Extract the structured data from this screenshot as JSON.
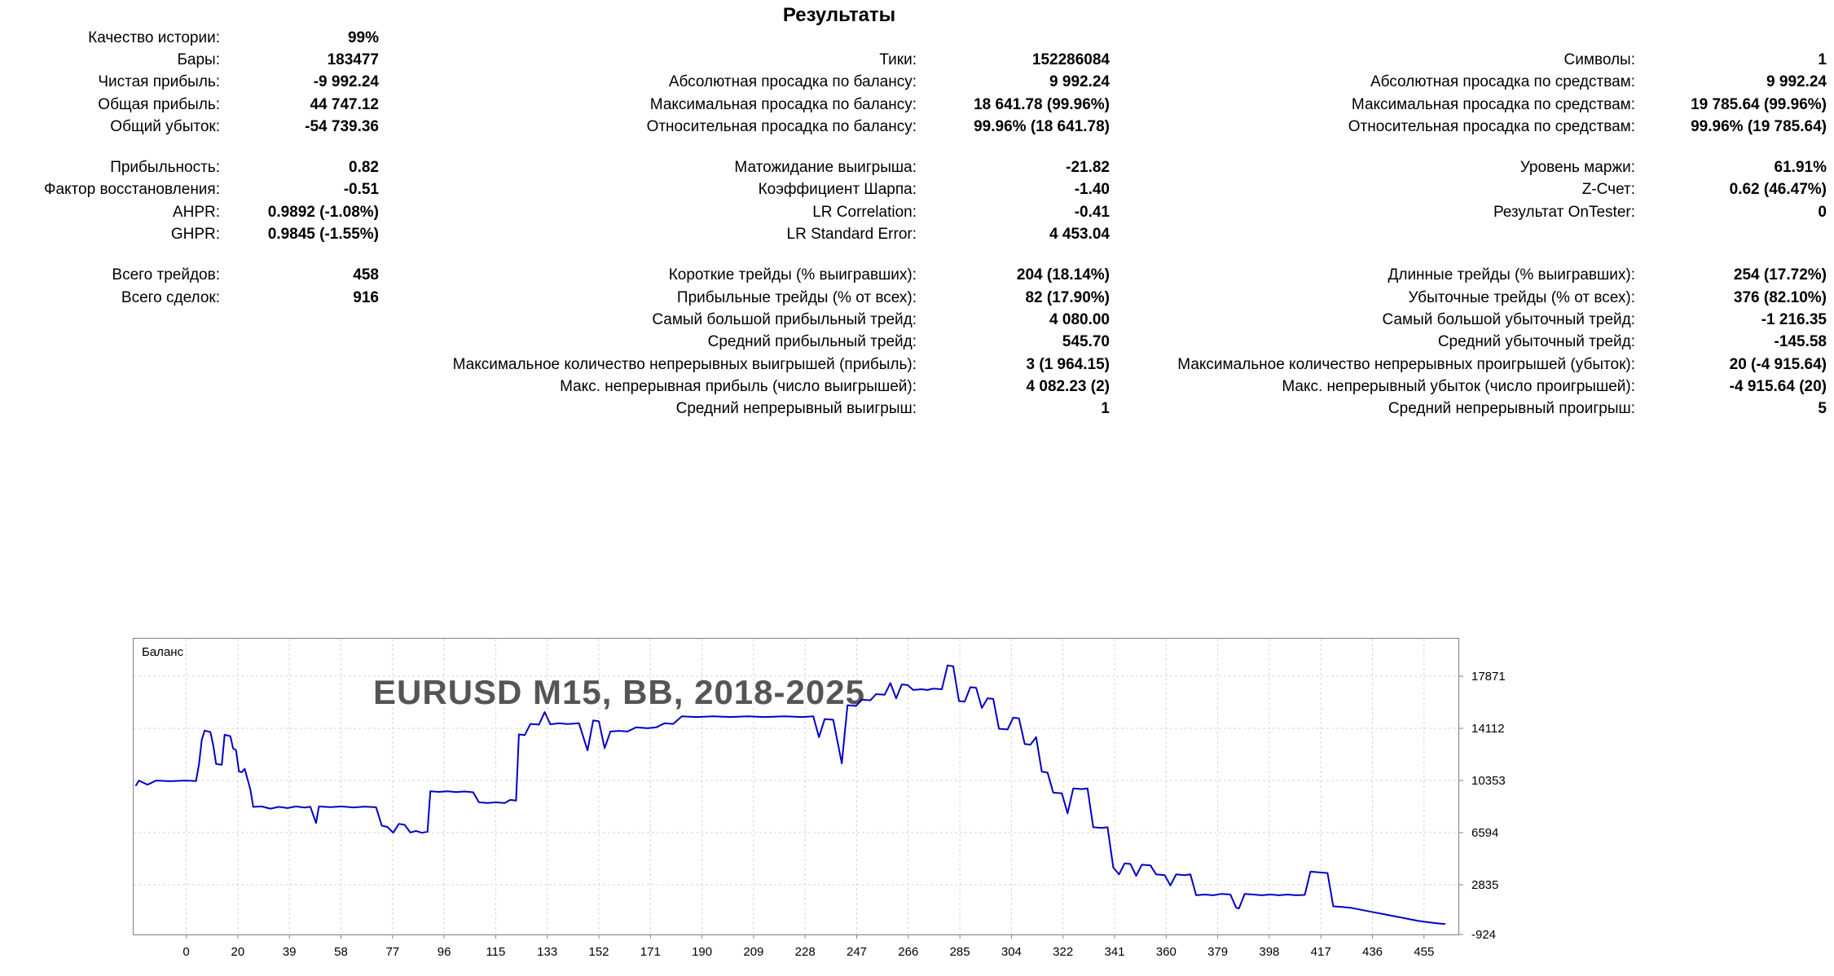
{
  "title": "Результаты",
  "stats": {
    "sections": [
      {
        "rows": [
          [
            {
              "label": "Качество истории:",
              "value": "99%"
            },
            {
              "label": "",
              "value": ""
            },
            {
              "label": "",
              "value": ""
            }
          ],
          [
            {
              "label": "Бары:",
              "value": "183477"
            },
            {
              "label": "Тики:",
              "value": "152286084"
            },
            {
              "label": "Символы:",
              "value": "1"
            }
          ],
          [
            {
              "label": "Чистая прибыль:",
              "value": "-9 992.24"
            },
            {
              "label": "Абсолютная просадка по балансу:",
              "value": "9 992.24"
            },
            {
              "label": "Абсолютная просадка по средствам:",
              "value": "9 992.24"
            }
          ],
          [
            {
              "label": "Общая прибыль:",
              "value": "44 747.12"
            },
            {
              "label": "Максимальная просадка по балансу:",
              "value": "18 641.78 (99.96%)"
            },
            {
              "label": "Максимальная просадка по средствам:",
              "value": "19 785.64 (99.96%)"
            }
          ],
          [
            {
              "label": "Общий убыток:",
              "value": "-54 739.36"
            },
            {
              "label": "Относительная просадка по балансу:",
              "value": "99.96% (18 641.78)"
            },
            {
              "label": "Относительная просадка по средствам:",
              "value": "99.96% (19 785.64)"
            }
          ]
        ]
      },
      {
        "rows": [
          [
            {
              "label": "Прибыльность:",
              "value": "0.82"
            },
            {
              "label": "Матожидание выигрыша:",
              "value": "-21.82"
            },
            {
              "label": "Уровень маржи:",
              "value": "61.91%"
            }
          ],
          [
            {
              "label": "Фактор восстановления:",
              "value": "-0.51"
            },
            {
              "label": "Коэффициент Шарпа:",
              "value": "-1.40"
            },
            {
              "label": "Z-Счет:",
              "value": "0.62 (46.47%)"
            }
          ],
          [
            {
              "label": "AHPR:",
              "value": "0.9892 (-1.08%)"
            },
            {
              "label": "LR Correlation:",
              "value": "-0.41"
            },
            {
              "label": "Результат OnTester:",
              "value": "0"
            }
          ],
          [
            {
              "label": "GHPR:",
              "value": "0.9845 (-1.55%)"
            },
            {
              "label": "LR Standard Error:",
              "value": "4 453.04"
            },
            {
              "label": "",
              "value": ""
            }
          ]
        ]
      },
      {
        "rows": [
          [
            {
              "label": "Всего трейдов:",
              "value": "458"
            },
            {
              "label": "Короткие трейды (% выигравших):",
              "value": "204 (18.14%)"
            },
            {
              "label": "Длинные трейды (% выигравших):",
              "value": "254 (17.72%)"
            }
          ],
          [
            {
              "label": "Всего сделок:",
              "value": "916"
            },
            {
              "label": "Прибыльные трейды (% от всех):",
              "value": "82 (17.90%)"
            },
            {
              "label": "Убыточные трейды (% от всех):",
              "value": "376 (82.10%)"
            }
          ],
          [
            {
              "label": "",
              "value": ""
            },
            {
              "label": "Самый большой прибыльный трейд:",
              "value": "4 080.00"
            },
            {
              "label": "Самый большой убыточный трейд:",
              "value": "-1 216.35"
            }
          ],
          [
            {
              "label": "",
              "value": ""
            },
            {
              "label": "Средний прибыльный трейд:",
              "value": "545.70"
            },
            {
              "label": "Средний убыточный трейд:",
              "value": "-145.58"
            }
          ],
          [
            {
              "label": "",
              "value": ""
            },
            {
              "label": "Максимальное количество непрерывных выигрышей (прибыль):",
              "value": "3 (1 964.15)"
            },
            {
              "label": "Максимальное количество непрерывных проигрышей (убыток):",
              "value": "20 (-4 915.64)"
            }
          ],
          [
            {
              "label": "",
              "value": ""
            },
            {
              "label": "Макс. непрерывная прибыль (число выигрышей):",
              "value": "4 082.23 (2)"
            },
            {
              "label": "Макс. непрерывный убыток (число проигрышей):",
              "value": "-4 915.64 (20)"
            }
          ],
          [
            {
              "label": "",
              "value": ""
            },
            {
              "label": "Средний непрерывный выигрыш:",
              "value": "1"
            },
            {
              "label": "Средний непрерывный проигрыш:",
              "value": "5"
            }
          ]
        ]
      }
    ]
  },
  "chart_data": {
    "type": "line",
    "series_name": "Баланс",
    "watermark": "EURUSD M15, BB, 2018-2025",
    "line_color": "#0000C8",
    "grid_color": "#d6d6d6",
    "border_color": "#808080",
    "watermark_color": "#555555",
    "legend_position": "top-left",
    "grid": true,
    "x_ticks": [
      0,
      20,
      39,
      58,
      77,
      96,
      115,
      133,
      152,
      171,
      190,
      209,
      228,
      247,
      266,
      285,
      304,
      322,
      341,
      360,
      379,
      398,
      417,
      436,
      455
    ],
    "y_ticks": [
      17871,
      14112,
      10353,
      6594,
      2835,
      -924
    ],
    "points": [
      [
        0,
        10000
      ],
      [
        1,
        10350
      ],
      [
        4,
        10050
      ],
      [
        7,
        10350
      ],
      [
        12,
        10300
      ],
      [
        17,
        10350
      ],
      [
        21,
        10320
      ],
      [
        22,
        11500
      ],
      [
        23,
        13300
      ],
      [
        24,
        13950
      ],
      [
        26,
        13850
      ],
      [
        27,
        12900
      ],
      [
        28,
        11550
      ],
      [
        30,
        11480
      ],
      [
        31,
        13650
      ],
      [
        33,
        13550
      ],
      [
        34,
        12650
      ],
      [
        35,
        12550
      ],
      [
        36,
        11000
      ],
      [
        37,
        10950
      ],
      [
        38,
        11200
      ],
      [
        40,
        9700
      ],
      [
        41,
        8450
      ],
      [
        44,
        8480
      ],
      [
        47,
        8320
      ],
      [
        50,
        8450
      ],
      [
        53,
        8360
      ],
      [
        56,
        8480
      ],
      [
        59,
        8400
      ],
      [
        61,
        8460
      ],
      [
        63,
        7280
      ],
      [
        64,
        8480
      ],
      [
        68,
        8430
      ],
      [
        72,
        8480
      ],
      [
        76,
        8410
      ],
      [
        80,
        8470
      ],
      [
        84,
        8420
      ],
      [
        86,
        7100
      ],
      [
        88,
        7000
      ],
      [
        90,
        6580
      ],
      [
        92,
        7230
      ],
      [
        94,
        7150
      ],
      [
        96,
        6600
      ],
      [
        98,
        6720
      ],
      [
        100,
        6580
      ],
      [
        102,
        6660
      ],
      [
        103,
        9580
      ],
      [
        106,
        9530
      ],
      [
        109,
        9580
      ],
      [
        112,
        9520
      ],
      [
        115,
        9560
      ],
      [
        118,
        9500
      ],
      [
        120,
        8780
      ],
      [
        123,
        8730
      ],
      [
        126,
        8780
      ],
      [
        129,
        8720
      ],
      [
        131,
        8960
      ],
      [
        133,
        8900
      ],
      [
        134,
        13680
      ],
      [
        136,
        13620
      ],
      [
        138,
        14430
      ],
      [
        141,
        14380
      ],
      [
        143,
        15280
      ],
      [
        145,
        14400
      ],
      [
        148,
        14480
      ],
      [
        151,
        14420
      ],
      [
        155,
        14480
      ],
      [
        158,
        12520
      ],
      [
        160,
        14680
      ],
      [
        162,
        14620
      ],
      [
        164,
        12680
      ],
      [
        166,
        13880
      ],
      [
        169,
        13930
      ],
      [
        172,
        13880
      ],
      [
        175,
        14180
      ],
      [
        179,
        14120
      ],
      [
        182,
        14180
      ],
      [
        185,
        14480
      ],
      [
        188,
        14430
      ],
      [
        191,
        14980
      ],
      [
        196,
        14930
      ],
      [
        202,
        14980
      ],
      [
        208,
        14930
      ],
      [
        214,
        14980
      ],
      [
        220,
        14930
      ],
      [
        227,
        14980
      ],
      [
        233,
        14930
      ],
      [
        237,
        14980
      ],
      [
        239,
        13480
      ],
      [
        241,
        14780
      ],
      [
        244,
        14730
      ],
      [
        247,
        11580
      ],
      [
        249,
        15780
      ],
      [
        252,
        15730
      ],
      [
        254,
        16180
      ],
      [
        257,
        16130
      ],
      [
        259,
        16580
      ],
      [
        262,
        16530
      ],
      [
        264,
        17380
      ],
      [
        266,
        16280
      ],
      [
        268,
        17280
      ],
      [
        270,
        17230
      ],
      [
        272,
        16880
      ],
      [
        275,
        16930
      ],
      [
        277,
        16880
      ],
      [
        279,
        16980
      ],
      [
        282,
        16930
      ],
      [
        284,
        18648
      ],
      [
        286,
        18580
      ],
      [
        288,
        16080
      ],
      [
        290,
        16030
      ],
      [
        292,
        17080
      ],
      [
        294,
        17030
      ],
      [
        296,
        15580
      ],
      [
        298,
        16280
      ],
      [
        300,
        16230
      ],
      [
        302,
        14080
      ],
      [
        305,
        14030
      ],
      [
        307,
        14880
      ],
      [
        309,
        14830
      ],
      [
        311,
        12980
      ],
      [
        313,
        12930
      ],
      [
        315,
        13480
      ],
      [
        317,
        10980
      ],
      [
        319,
        10930
      ],
      [
        321,
        9480
      ],
      [
        324,
        9430
      ],
      [
        326,
        7980
      ],
      [
        328,
        9780
      ],
      [
        331,
        9730
      ],
      [
        333,
        9780
      ],
      [
        335,
        6980
      ],
      [
        338,
        6930
      ],
      [
        340,
        6980
      ],
      [
        342,
        4080
      ],
      [
        344,
        3580
      ],
      [
        346,
        4380
      ],
      [
        348,
        4330
      ],
      [
        350,
        3480
      ],
      [
        352,
        4280
      ],
      [
        355,
        4230
      ],
      [
        357,
        3580
      ],
      [
        360,
        3530
      ],
      [
        362,
        2780
      ],
      [
        364,
        3580
      ],
      [
        367,
        3530
      ],
      [
        369,
        3580
      ],
      [
        371,
        2080
      ],
      [
        374,
        2130
      ],
      [
        377,
        2080
      ],
      [
        380,
        2180
      ],
      [
        383,
        2130
      ],
      [
        385,
        1180
      ],
      [
        386,
        1130
      ],
      [
        388,
        2180
      ],
      [
        391,
        2130
      ],
      [
        394,
        2080
      ],
      [
        397,
        2130
      ],
      [
        400,
        2080
      ],
      [
        403,
        2130
      ],
      [
        406,
        2080
      ],
      [
        409,
        2100
      ],
      [
        411,
        3780
      ],
      [
        414,
        3730
      ],
      [
        417,
        3680
      ],
      [
        419,
        1280
      ],
      [
        422,
        1230
      ],
      [
        425,
        1180
      ],
      [
        428,
        1060
      ],
      [
        431,
        940
      ],
      [
        434,
        820
      ],
      [
        437,
        700
      ],
      [
        440,
        580
      ],
      [
        443,
        460
      ],
      [
        446,
        340
      ],
      [
        449,
        220
      ],
      [
        452,
        140
      ],
      [
        455,
        60
      ],
      [
        458,
        8
      ]
    ]
  }
}
